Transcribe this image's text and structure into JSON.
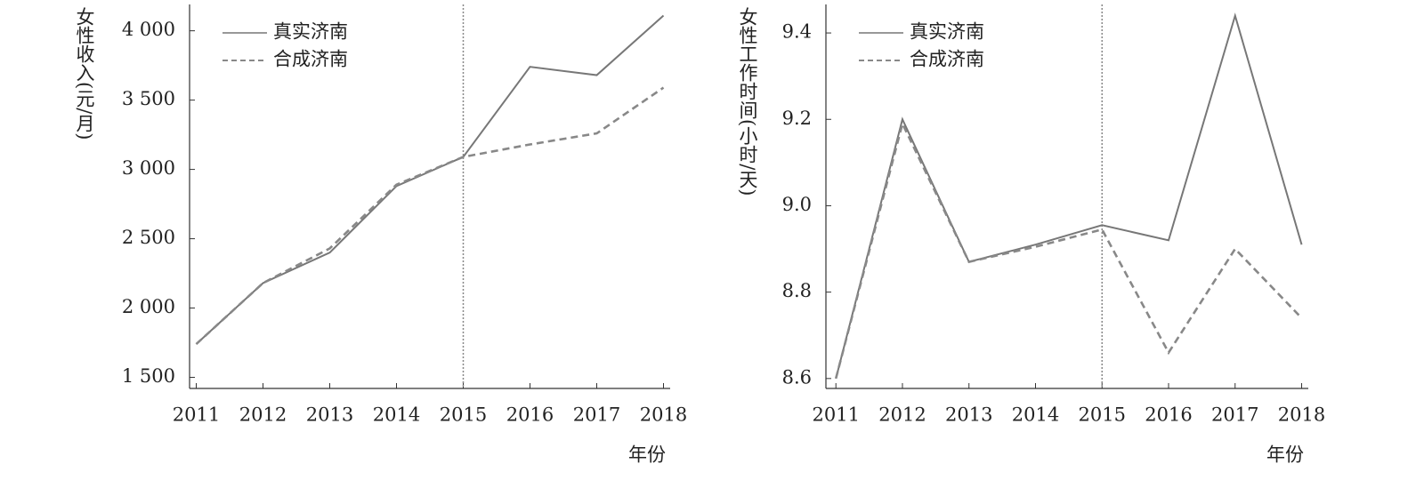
{
  "chart_data": [
    {
      "type": "line",
      "y_label": "女性收入(元/月)",
      "x_label": "年份",
      "x": [
        2011,
        2012,
        2013,
        2014,
        2015,
        2016,
        2017,
        2018
      ],
      "xlim": [
        2010.9,
        2018.1
      ],
      "xticks": [
        2011,
        2012,
        2013,
        2014,
        2015,
        2016,
        2017,
        2018
      ],
      "ylim": [
        1420,
        4190
      ],
      "yticks": [
        {
          "value": 1500,
          "label": "1 500"
        },
        {
          "value": 2000,
          "label": "2 000"
        },
        {
          "value": 2500,
          "label": "2 500"
        },
        {
          "value": 3000,
          "label": "3 000"
        },
        {
          "value": 3500,
          "label": "3 500"
        },
        {
          "value": 4000,
          "label": "4 000"
        }
      ],
      "vline": 2015,
      "legend": "top-left",
      "series": [
        {
          "name": "真实济南",
          "color": "#777777",
          "dash": false,
          "values": [
            1740,
            2180,
            2400,
            2880,
            3090,
            3740,
            3680,
            4110
          ]
        },
        {
          "name": "合成济南",
          "color": "#888888",
          "dash": true,
          "values": [
            1740,
            2180,
            2430,
            2890,
            3090,
            3180,
            3260,
            3590
          ]
        }
      ]
    },
    {
      "type": "line",
      "y_label": "女性工作时间(小时/天)",
      "x_label": "年份",
      "x": [
        2011,
        2012,
        2013,
        2014,
        2015,
        2016,
        2017,
        2018
      ],
      "xlim": [
        2010.85,
        2018.1
      ],
      "xticks": [
        2011,
        2012,
        2013,
        2014,
        2015,
        2016,
        2017,
        2018
      ],
      "ylim": [
        8.577,
        9.466
      ],
      "yticks": [
        8.6,
        8.8,
        {
          "value": 9,
          "label": "9.0"
        },
        9.2,
        9.4
      ],
      "vline": 2015,
      "legend": "top-left",
      "series": [
        {
          "name": "真实济南",
          "color": "#777777",
          "dash": false,
          "values": [
            8.6,
            9.2,
            8.87,
            8.91,
            8.955,
            8.92,
            9.44,
            8.91
          ]
        },
        {
          "name": "合成济南",
          "color": "#888888",
          "dash": true,
          "values": [
            8.6,
            9.19,
            8.87,
            8.905,
            8.945,
            8.66,
            8.9,
            8.74
          ]
        }
      ]
    }
  ]
}
